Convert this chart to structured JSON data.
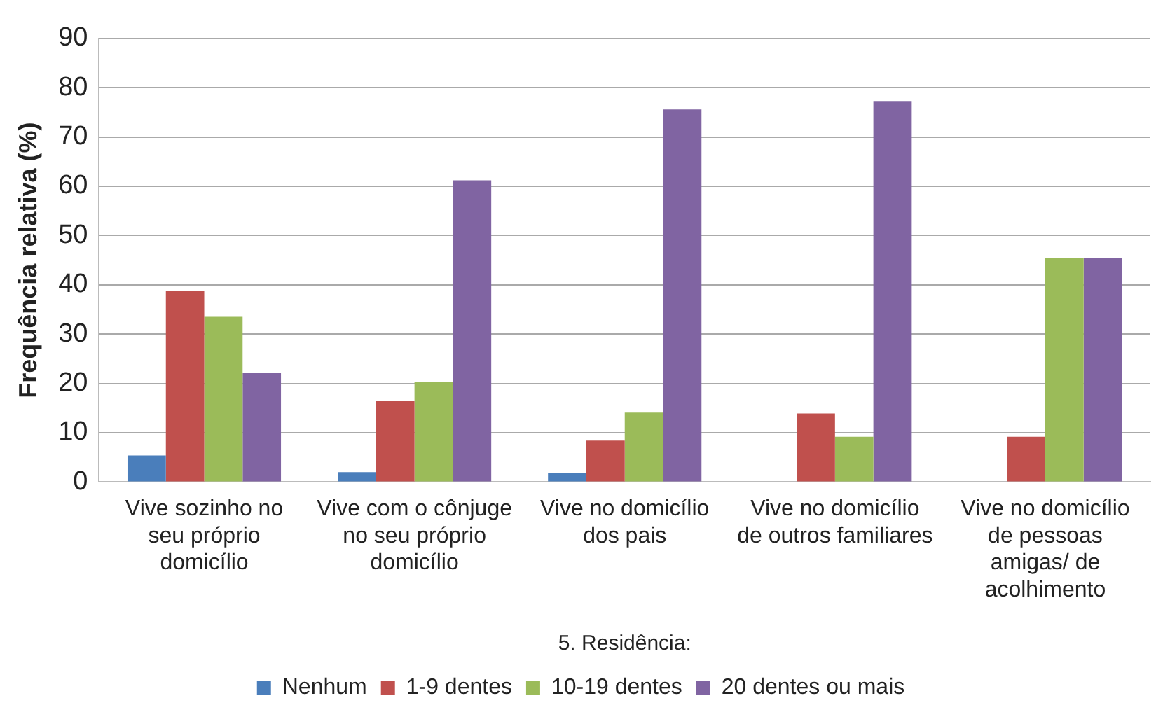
{
  "chart_data": {
    "type": "bar",
    "xlabel": "5. Residência:",
    "ylabel": "Frequência relativa (%)",
    "categories": [
      "Vive sozinho no seu próprio domicílio",
      "Vive com o cônjuge no seu próprio domicílio",
      "Vive no domicílio dos pais",
      "Vive no domicílio de outros familiares",
      "Vive no domicílio de pessoas amigas/ de acolhimento"
    ],
    "series": [
      {
        "name": "Nenhum",
        "color": "#4a7ebb",
        "values": [
          5.4,
          2,
          1.8,
          0,
          0
        ]
      },
      {
        "name": "1-9 dentes",
        "color": "#c0504d",
        "values": [
          38.8,
          16.4,
          8.4,
          13.9,
          9.2
        ]
      },
      {
        "name": "10-19 dentes",
        "color": "#9bbb59",
        "values": [
          33.5,
          20.3,
          14.1,
          9.2,
          45.4
        ]
      },
      {
        "name": "20 dentes ou mais",
        "color": "#8064a2",
        "values": [
          22.1,
          61.2,
          75.6,
          77.3,
          45.4
        ]
      }
    ],
    "ylim": [
      0,
      90
    ],
    "yticks": [
      0,
      10,
      20,
      30,
      40,
      50,
      60,
      70,
      80,
      90
    ],
    "grid": "y",
    "legend": "bottom"
  }
}
